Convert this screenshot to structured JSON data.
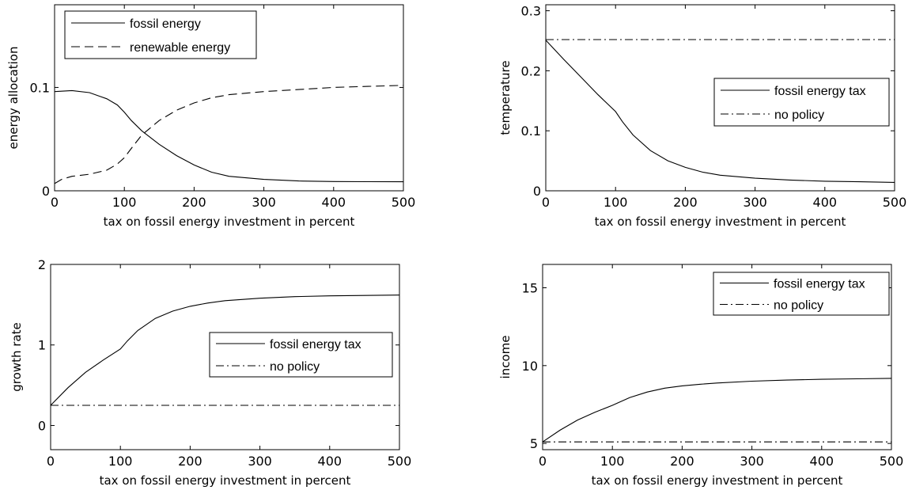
{
  "chart_data": [
    {
      "type": "line",
      "xlabel": "tax on fossil energy investment in percent",
      "ylabel": "energy allocation",
      "xlim": [
        0,
        500
      ],
      "ylim": [
        0,
        0.18
      ],
      "xticks": [
        0,
        100,
        200,
        300,
        400,
        500
      ],
      "yticks": [
        0,
        0.1
      ],
      "xtick_labels": [
        "0",
        "100",
        "200",
        "300",
        "400",
        "500"
      ],
      "ytick_labels": [
        "0",
        "0.1"
      ],
      "grid": false,
      "legend": "top-left",
      "series": [
        {
          "name": "fossil energy",
          "style": "solid",
          "x": [
            0,
            25,
            50,
            75,
            90,
            100,
            110,
            125,
            150,
            175,
            200,
            225,
            250,
            300,
            350,
            400,
            450,
            500
          ],
          "y": [
            0.096,
            0.097,
            0.095,
            0.089,
            0.083,
            0.076,
            0.068,
            0.058,
            0.045,
            0.034,
            0.025,
            0.018,
            0.014,
            0.011,
            0.0095,
            0.009,
            0.0088,
            0.0087
          ]
        },
        {
          "name": "renewable energy",
          "style": "dashed",
          "x": [
            0,
            10,
            25,
            50,
            75,
            90,
            100,
            110,
            125,
            150,
            175,
            200,
            225,
            250,
            300,
            350,
            400,
            450,
            500
          ],
          "y": [
            0.007,
            0.011,
            0.014,
            0.016,
            0.02,
            0.026,
            0.032,
            0.041,
            0.054,
            0.068,
            0.078,
            0.085,
            0.09,
            0.093,
            0.096,
            0.098,
            0.1,
            0.101,
            0.102
          ]
        }
      ]
    },
    {
      "type": "line",
      "xlabel": "tax on fossil energy investment in percent",
      "ylabel": "temperature",
      "xlim": [
        0,
        500
      ],
      "ylim": [
        0,
        0.31
      ],
      "xticks": [
        0,
        100,
        200,
        300,
        400,
        500
      ],
      "yticks": [
        0,
        0.1,
        0.2,
        0.3
      ],
      "xtick_labels": [
        "0",
        "100",
        "200",
        "300",
        "400",
        "500"
      ],
      "ytick_labels": [
        "0",
        "0.1",
        "0.2",
        "0.3"
      ],
      "grid": false,
      "legend": "center-right",
      "series": [
        {
          "name": "fossil energy tax",
          "style": "solid",
          "x": [
            0,
            25,
            50,
            75,
            100,
            110,
            125,
            150,
            175,
            200,
            225,
            250,
            300,
            350,
            400,
            450,
            500
          ],
          "y": [
            0.251,
            0.22,
            0.19,
            0.16,
            0.132,
            0.115,
            0.093,
            0.067,
            0.05,
            0.039,
            0.031,
            0.026,
            0.021,
            0.018,
            0.016,
            0.015,
            0.014
          ]
        },
        {
          "name": "no policy",
          "style": "dashdot",
          "x": [
            0,
            500
          ],
          "y": [
            0.252,
            0.252
          ]
        }
      ]
    },
    {
      "type": "line",
      "xlabel": "tax on fossil energy investment in percent",
      "ylabel": "growth rate",
      "xlim": [
        0,
        500
      ],
      "ylim": [
        -0.3,
        2
      ],
      "xticks": [
        0,
        100,
        200,
        300,
        400,
        500
      ],
      "yticks": [
        0,
        1,
        2
      ],
      "xtick_labels": [
        "0",
        "100",
        "200",
        "300",
        "400",
        "500"
      ],
      "ytick_labels": [
        "0",
        "1",
        "2"
      ],
      "grid": false,
      "legend": "center-right",
      "series": [
        {
          "name": "fossil energy tax",
          "style": "solid",
          "x": [
            0,
            25,
            50,
            75,
            100,
            110,
            125,
            150,
            175,
            200,
            225,
            250,
            300,
            350,
            400,
            450,
            500
          ],
          "y": [
            0.25,
            0.47,
            0.66,
            0.81,
            0.95,
            1.05,
            1.18,
            1.33,
            1.42,
            1.48,
            1.52,
            1.55,
            1.58,
            1.6,
            1.61,
            1.615,
            1.62
          ]
        },
        {
          "name": "no policy",
          "style": "dashdot",
          "x": [
            0,
            500
          ],
          "y": [
            0.25,
            0.25
          ]
        }
      ]
    },
    {
      "type": "line",
      "xlabel": "tax on fossil energy investment in percent",
      "ylabel": "income",
      "xlim": [
        0,
        500
      ],
      "ylim": [
        4.6,
        16.5
      ],
      "xticks": [
        0,
        100,
        200,
        300,
        400,
        500
      ],
      "yticks": [
        5,
        10,
        15
      ],
      "xtick_labels": [
        "0",
        "100",
        "200",
        "300",
        "400",
        "500"
      ],
      "ytick_labels": [
        "5",
        "10",
        "15"
      ],
      "grid": false,
      "legend": "top-right",
      "series": [
        {
          "name": "fossil energy tax",
          "style": "solid",
          "x": [
            0,
            25,
            50,
            75,
            100,
            125,
            150,
            175,
            200,
            225,
            250,
            300,
            350,
            400,
            450,
            500
          ],
          "y": [
            5.1,
            5.85,
            6.5,
            7.0,
            7.45,
            7.95,
            8.3,
            8.55,
            8.7,
            8.8,
            8.88,
            9.0,
            9.07,
            9.12,
            9.15,
            9.18
          ]
        },
        {
          "name": "no policy",
          "style": "dashdot",
          "x": [
            0,
            500
          ],
          "y": [
            5.1,
            5.1
          ]
        }
      ]
    }
  ]
}
